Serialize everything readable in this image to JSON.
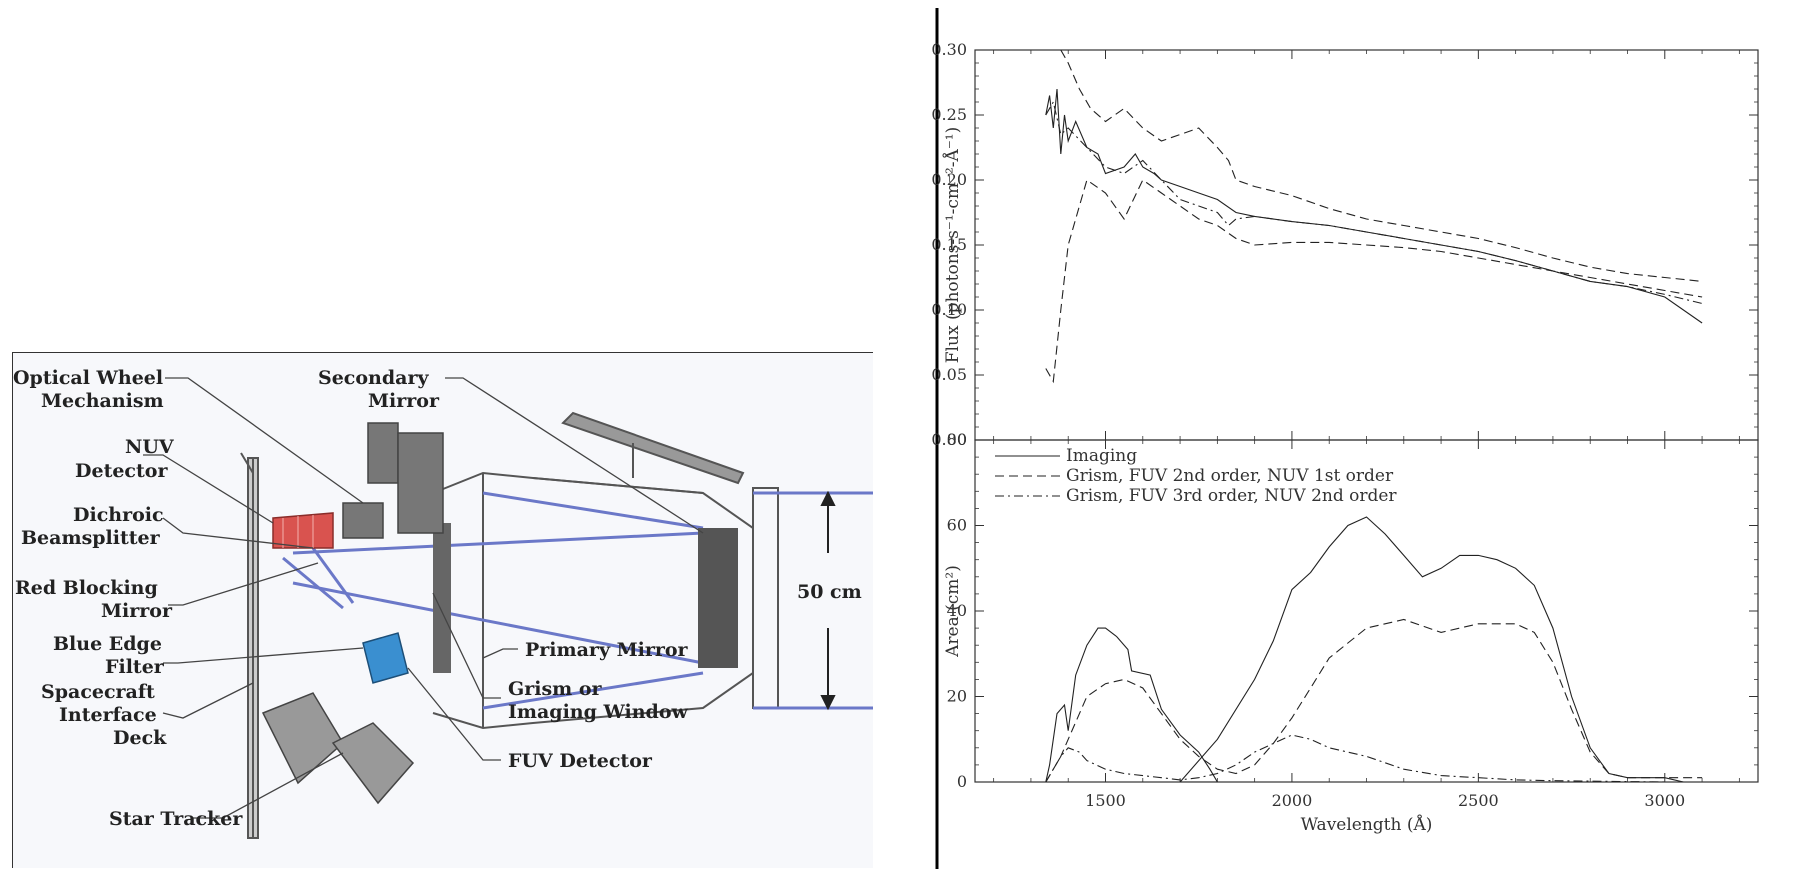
{
  "diagram": {
    "labels": {
      "optical_wheel": [
        "Optical Wheel",
        "Mechanism"
      ],
      "secondary_mirror": [
        "Secondary",
        "Mirror"
      ],
      "nuv_detector": [
        "NUV",
        "Detector"
      ],
      "dichroic": [
        "Dichroic",
        "Beamsplitter"
      ],
      "red_blocking": [
        "Red Blocking",
        "Mirror"
      ],
      "blue_edge": [
        "Blue Edge",
        "Filter"
      ],
      "spacecraft": [
        "Spacecraft",
        "Interface",
        "Deck"
      ],
      "star_tracker": "Star Tracker",
      "primary_mirror": "Primary Mirror",
      "grism": [
        "Grism or",
        "Imaging Window"
      ],
      "fuv_detector": "FUV Detector",
      "aperture": "50 cm"
    }
  },
  "chart_data": [
    {
      "type": "line",
      "title": "",
      "xlabel": "",
      "ylabel": "Flux (photons-s⁻¹-cm⁻²-Å⁻¹)",
      "xlim": [
        1150,
        3250
      ],
      "ylim": [
        0,
        0.3
      ],
      "yticks": [
        "0.00",
        "0.05",
        "0.10",
        "0.15",
        "0.20",
        "0.25",
        "0.30"
      ],
      "series": [
        {
          "style": "solid",
          "x": [
            1340,
            1350,
            1360,
            1370,
            1380,
            1390,
            1400,
            1420,
            1450,
            1480,
            1500,
            1550,
            1580,
            1600,
            1630,
            1650,
            1700,
            1750,
            1800,
            1850,
            1900,
            2000,
            2100,
            2200,
            2300,
            2400,
            2500,
            2600,
            2700,
            2800,
            2900,
            3000,
            3100
          ],
          "y": [
            0.25,
            0.265,
            0.24,
            0.27,
            0.22,
            0.25,
            0.23,
            0.245,
            0.225,
            0.22,
            0.205,
            0.21,
            0.22,
            0.21,
            0.205,
            0.2,
            0.195,
            0.19,
            0.185,
            0.175,
            0.172,
            0.168,
            0.165,
            0.16,
            0.155,
            0.15,
            0.145,
            0.138,
            0.13,
            0.122,
            0.118,
            0.11,
            0.09
          ]
        },
        {
          "style": "dashed",
          "x": [
            1340,
            1360,
            1380,
            1400,
            1450,
            1500,
            1550,
            1600,
            1650,
            1700,
            1750,
            1800,
            1850,
            1900,
            2000,
            2100,
            2200,
            2300,
            2400,
            2500,
            2600,
            2700,
            2800,
            2900,
            3000,
            3100
          ],
          "y": [
            0.055,
            0.045,
            0.1,
            0.15,
            0.2,
            0.19,
            0.17,
            0.2,
            0.19,
            0.18,
            0.17,
            0.165,
            0.155,
            0.15,
            0.152,
            0.152,
            0.15,
            0.148,
            0.145,
            0.14,
            0.135,
            0.13,
            0.125,
            0.12,
            0.115,
            0.11
          ]
        },
        {
          "style": "dashed",
          "x": [
            1380,
            1400,
            1430,
            1460,
            1500,
            1550,
            1600,
            1650,
            1700,
            1750,
            1800,
            1830,
            1850,
            1900,
            2000,
            2100,
            2200,
            2300,
            2400,
            2500,
            2600,
            2700,
            2800,
            2900,
            3000,
            3100
          ],
          "y": [
            0.3,
            0.29,
            0.27,
            0.255,
            0.245,
            0.255,
            0.24,
            0.23,
            0.235,
            0.24,
            0.225,
            0.215,
            0.2,
            0.195,
            0.188,
            0.178,
            0.17,
            0.165,
            0.16,
            0.155,
            0.148,
            0.14,
            0.133,
            0.128,
            0.125,
            0.122
          ]
        },
        {
          "style": "dashdot",
          "x": [
            1340,
            1360,
            1380,
            1400,
            1450,
            1500,
            1550,
            1600,
            1650,
            1700,
            1750,
            1800,
            1830,
            1850,
            1900,
            2000,
            2100,
            2200,
            2300,
            2400,
            2500,
            2600,
            2700,
            2800,
            2900,
            3000,
            3100
          ],
          "y": [
            0.25,
            0.26,
            0.235,
            0.24,
            0.225,
            0.21,
            0.205,
            0.215,
            0.2,
            0.185,
            0.18,
            0.175,
            0.165,
            0.17,
            0.172,
            0.168,
            0.165,
            0.16,
            0.155,
            0.15,
            0.145,
            0.138,
            0.13,
            0.122,
            0.118,
            0.112,
            0.105
          ]
        }
      ]
    },
    {
      "type": "line",
      "title": "",
      "xlabel": "Wavelength (Å)",
      "ylabel": "Area (cm²)",
      "xlim": [
        1150,
        3250
      ],
      "ylim": [
        0,
        80
      ],
      "xticks": [
        "1500",
        "2000",
        "2500",
        "3000"
      ],
      "yticks": [
        "0",
        "20",
        "40",
        "60",
        "80"
      ],
      "legend_position": "top-left",
      "series": [
        {
          "name": "Imaging",
          "style": "solid",
          "x": [
            1340,
            1350,
            1370,
            1390,
            1400,
            1420,
            1450,
            1480,
            1500,
            1530,
            1560,
            1570,
            1620,
            1650,
            1700,
            1750,
            1780,
            1800,
            1700,
            1800,
            1900,
            1950,
            2000,
            2050,
            2100,
            2150,
            2200,
            2250,
            2300,
            2350,
            2400,
            2450,
            2500,
            2550,
            2600,
            2650,
            2700,
            2750,
            2800,
            2850,
            2900,
            3000,
            3050
          ],
          "y": [
            0,
            4,
            16,
            18,
            12,
            25,
            32,
            36,
            36,
            34,
            31,
            26,
            25,
            17,
            11,
            7,
            3,
            0,
            0,
            10,
            24,
            33,
            45,
            49,
            55,
            60,
            62,
            58,
            53,
            48,
            50,
            53,
            53,
            52,
            50,
            46,
            36,
            20,
            8,
            2,
            1,
            1,
            0
          ]
        },
        {
          "name": "Grism, FUV 2nd order, NUV 1st order",
          "style": "dashed",
          "x": [
            1340,
            1380,
            1400,
            1450,
            1500,
            1550,
            1600,
            1650,
            1700,
            1750,
            1800,
            1850,
            1900,
            1950,
            2000,
            2050,
            2100,
            2200,
            2300,
            2400,
            2500,
            2600,
            2650,
            2700,
            2750,
            2800,
            2850,
            2900,
            3000,
            3100
          ],
          "y": [
            0,
            6,
            10,
            20,
            23,
            24,
            22,
            16,
            10,
            6,
            3,
            2,
            4,
            9,
            15,
            22,
            29,
            36,
            38,
            35,
            37,
            37,
            35,
            28,
            17,
            7,
            2,
            1,
            1,
            1
          ]
        },
        {
          "name": "Grism, FUV 3rd order, NUV 2nd order",
          "style": "dashdot",
          "x": [
            1340,
            1380,
            1400,
            1430,
            1450,
            1500,
            1550,
            1600,
            1650,
            1700,
            1750,
            1800,
            1850,
            1900,
            1950,
            2000,
            2050,
            2100,
            2200,
            2300,
            2400,
            2500,
            2600,
            2700,
            2800,
            2900,
            3000
          ],
          "y": [
            0,
            6,
            8,
            7,
            5,
            3,
            2,
            1.5,
            1,
            0.5,
            1,
            2,
            4,
            7,
            9,
            11,
            10,
            8,
            6,
            3,
            1.5,
            1,
            0.5,
            0.3,
            0.2,
            0.1,
            0
          ]
        }
      ]
    }
  ],
  "colors": {
    "beam": "#6b78c8",
    "nuv_detector": "#d9534f",
    "fuv_detector": "#3a8fd0",
    "axis": "#333333"
  }
}
